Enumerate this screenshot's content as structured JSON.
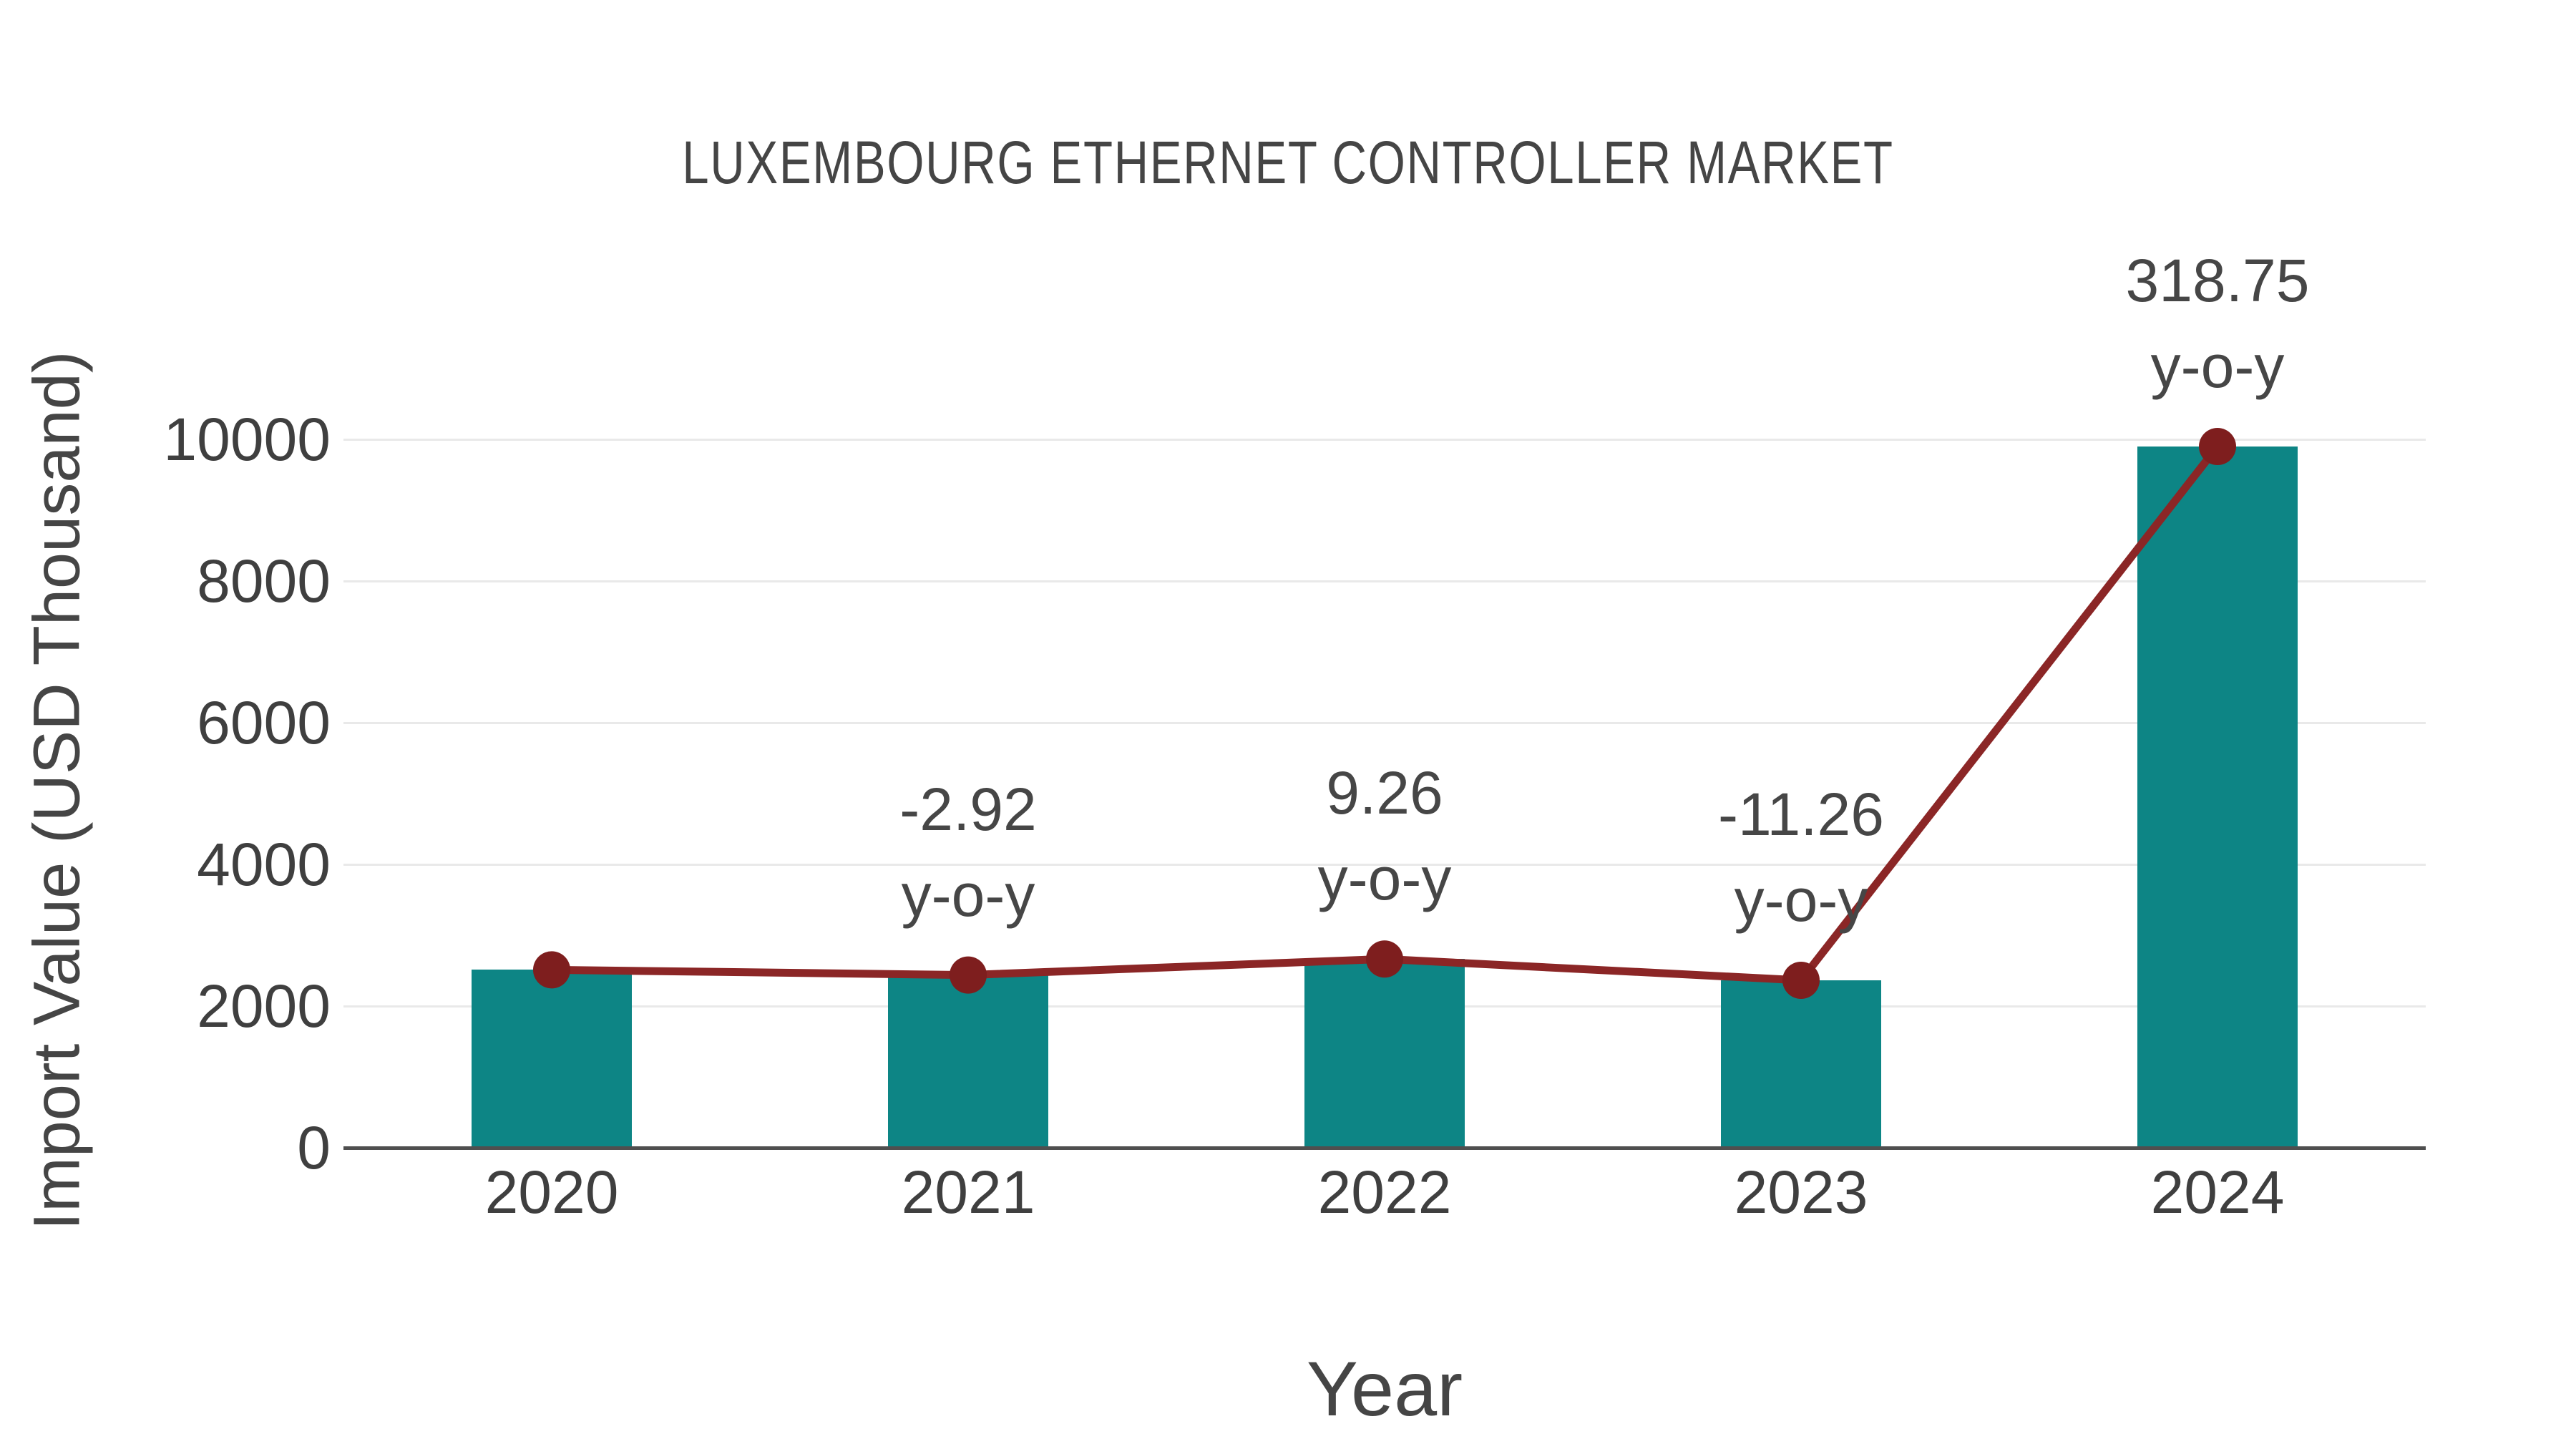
{
  "chart": {
    "title": "LUXEMBOURG ETHERNET CONTROLLER MARKET",
    "x_axis_title": "Year",
    "y_axis_title": "Import Value (USD Thousand)"
  },
  "chart_data": {
    "type": "bar",
    "overlay_line": true,
    "title": "LUXEMBOURG ETHERNET CONTROLLER MARKET",
    "xlabel": "Year",
    "ylabel": "Import Value (USD Thousand)",
    "categories": [
      "2020",
      "2021",
      "2022",
      "2023",
      "2024"
    ],
    "values": [
      2511.5,
      2438.2,
      2664.0,
      2364.0,
      9899.3
    ],
    "annotations": [
      null,
      {
        "value": "-2.92",
        "label": "y-o-y"
      },
      {
        "value": "9.26",
        "label": "y-o-y"
      },
      {
        "value": "-11.26",
        "label": "y-o-y"
      },
      {
        "value": "318.75",
        "label": "y-o-y"
      }
    ],
    "yticks": [
      0,
      2000,
      4000,
      6000,
      8000,
      10000
    ],
    "ylim": [
      0,
      10000
    ],
    "grid": true,
    "legend_position": "none",
    "colors": {
      "bar": "#0d8585",
      "line": "#8b2626",
      "marker": "#7e1e1e",
      "gridline": "#e9e9e9",
      "axis_line": "#4f4f4f",
      "text": "#454545",
      "tick_text": "#3f3f3f"
    }
  }
}
